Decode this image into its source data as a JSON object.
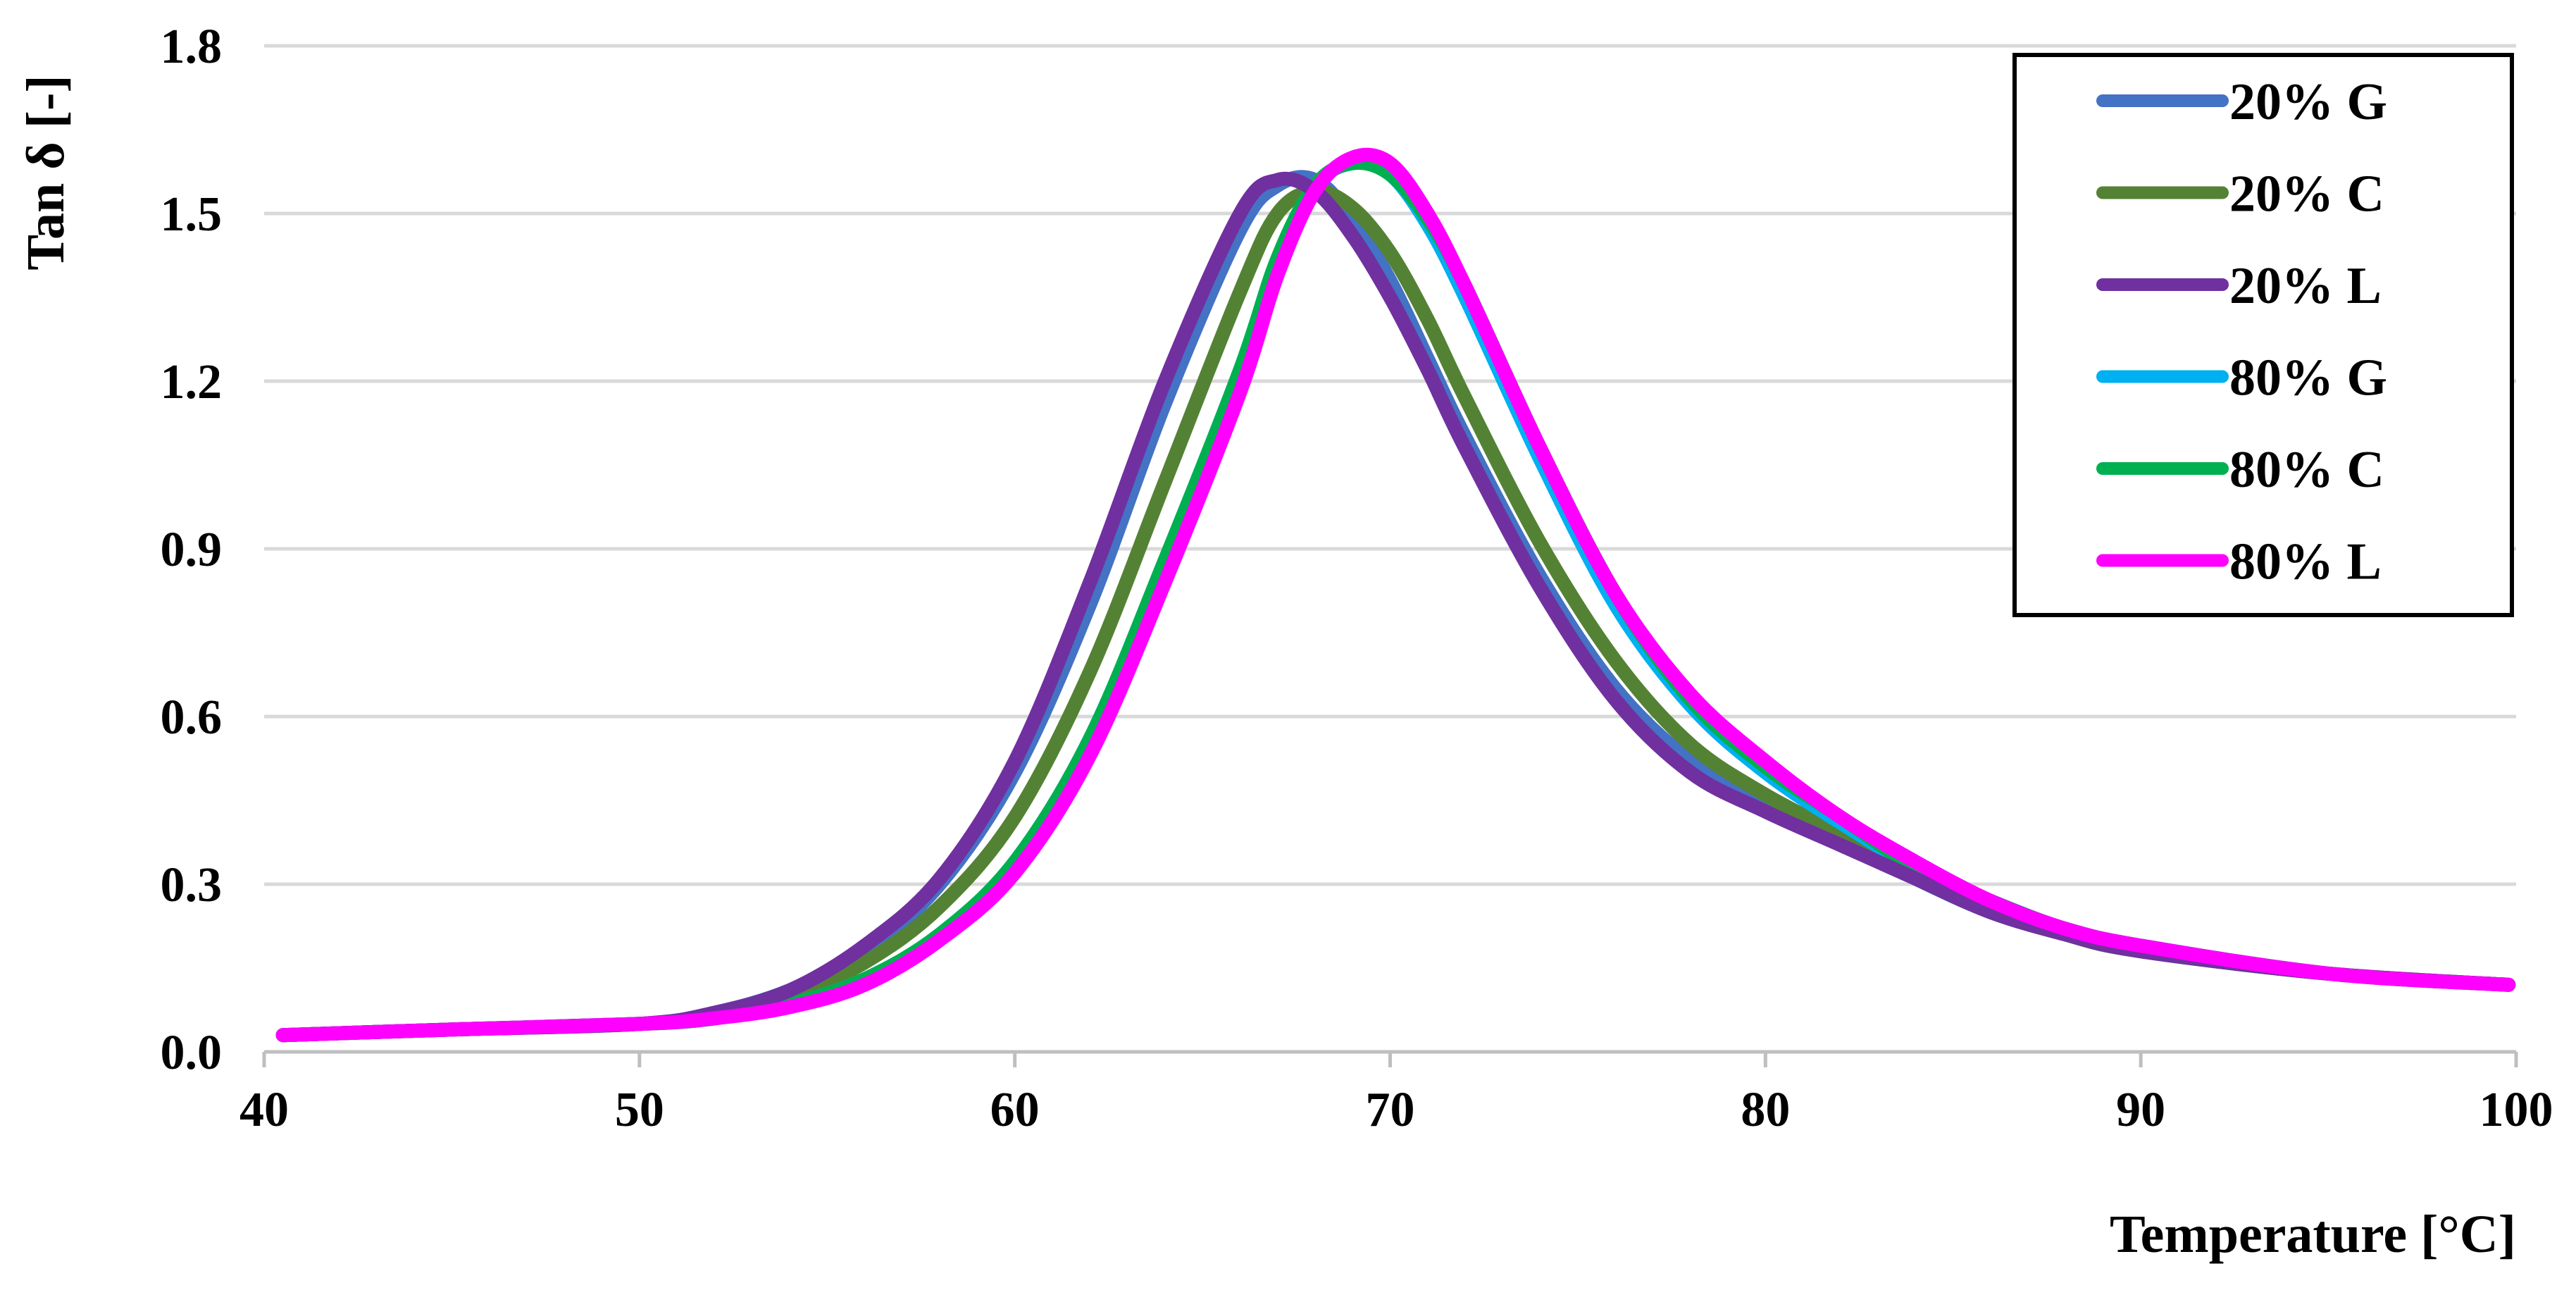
{
  "chart_data": {
    "type": "line",
    "title": "",
    "xlabel": "Temperature [°C]",
    "ylabel": "Tan δ [-]",
    "xlim": [
      40,
      100
    ],
    "ylim": [
      0.0,
      1.8
    ],
    "x_ticks": [
      "40",
      "50",
      "60",
      "70",
      "80",
      "90",
      "100"
    ],
    "y_ticks": [
      "0.0",
      "0.3",
      "0.6",
      "0.9",
      "1.2",
      "1.5",
      "1.8"
    ],
    "grid": "horizontal",
    "legend_position": "top-right",
    "x": [
      40.5,
      45,
      50,
      52,
      54,
      56,
      58,
      60,
      62,
      64,
      66,
      67,
      68,
      69,
      70,
      71,
      72,
      74,
      76,
      78,
      80,
      82,
      84,
      86,
      88,
      90,
      95,
      99.8
    ],
    "series": [
      {
        "name": "20% G",
        "color": "#4472C4",
        "values": [
          0.03,
          0.04,
          0.05,
          0.07,
          0.11,
          0.18,
          0.3,
          0.5,
          0.8,
          1.16,
          1.47,
          1.55,
          1.56,
          1.49,
          1.38,
          1.24,
          1.1,
          0.85,
          0.65,
          0.52,
          0.44,
          0.38,
          0.31,
          0.25,
          0.21,
          0.18,
          0.14,
          0.12
        ]
      },
      {
        "name": "20% C",
        "color": "#548235",
        "values": [
          0.03,
          0.04,
          0.05,
          0.065,
          0.1,
          0.16,
          0.26,
          0.42,
          0.68,
          1.02,
          1.36,
          1.5,
          1.54,
          1.51,
          1.43,
          1.31,
          1.17,
          0.91,
          0.7,
          0.55,
          0.46,
          0.39,
          0.32,
          0.26,
          0.21,
          0.18,
          0.14,
          0.12
        ]
      },
      {
        "name": "20% L",
        "color": "#7030A0",
        "values": [
          0.03,
          0.04,
          0.05,
          0.07,
          0.11,
          0.19,
          0.31,
          0.52,
          0.84,
          1.2,
          1.5,
          1.56,
          1.54,
          1.46,
          1.35,
          1.22,
          1.08,
          0.83,
          0.63,
          0.5,
          0.43,
          0.37,
          0.31,
          0.25,
          0.21,
          0.18,
          0.14,
          0.12
        ]
      },
      {
        "name": "80% G",
        "color": "#00B0F0",
        "values": [
          0.03,
          0.04,
          0.05,
          0.06,
          0.085,
          0.13,
          0.21,
          0.34,
          0.56,
          0.88,
          1.22,
          1.42,
          1.55,
          1.59,
          1.57,
          1.48,
          1.35,
          1.06,
          0.8,
          0.62,
          0.5,
          0.41,
          0.33,
          0.27,
          0.22,
          0.19,
          0.14,
          0.12
        ]
      },
      {
        "name": "80% C",
        "color": "#00B050",
        "values": [
          0.03,
          0.04,
          0.05,
          0.06,
          0.085,
          0.13,
          0.21,
          0.34,
          0.56,
          0.88,
          1.22,
          1.42,
          1.55,
          1.59,
          1.57,
          1.49,
          1.37,
          1.08,
          0.82,
          0.63,
          0.51,
          0.42,
          0.33,
          0.27,
          0.22,
          0.19,
          0.14,
          0.12
        ]
      },
      {
        "name": "80% L",
        "color": "#FF00FF",
        "values": [
          0.03,
          0.04,
          0.05,
          0.06,
          0.08,
          0.12,
          0.2,
          0.32,
          0.53,
          0.84,
          1.18,
          1.39,
          1.54,
          1.6,
          1.59,
          1.5,
          1.37,
          1.08,
          0.82,
          0.64,
          0.52,
          0.42,
          0.34,
          0.27,
          0.22,
          0.19,
          0.14,
          0.12
        ]
      }
    ]
  }
}
